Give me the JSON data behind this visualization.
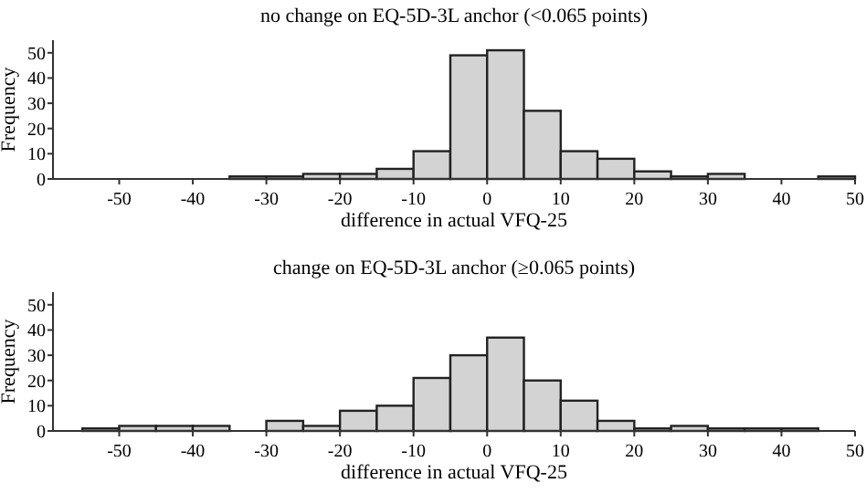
{
  "chart_data": [
    {
      "type": "histogram",
      "title": "no change on EQ-5D-3L anchor (<0.065 points)",
      "xlabel": "difference in actual VFQ-25",
      "ylabel": "Frequency",
      "color": "#d3d3d3",
      "bins": [
        -35,
        -30,
        -25,
        -20,
        -15,
        -10,
        -5,
        0,
        5,
        10,
        15,
        20,
        25,
        30,
        35,
        40,
        45,
        50
      ],
      "values": [
        1,
        1,
        2,
        2,
        4,
        11,
        49,
        51,
        27,
        11,
        8,
        3,
        1,
        2,
        0,
        0,
        1
      ],
      "xlim": [
        -59,
        50
      ],
      "xticks": [
        -50,
        -40,
        -30,
        -20,
        -10,
        0,
        10,
        20,
        30,
        40,
        50
      ],
      "ylim": [
        0,
        55
      ],
      "yticks": [
        0,
        10,
        20,
        30,
        40,
        50
      ],
      "grid": false
    },
    {
      "type": "histogram",
      "title": "change on EQ-5D-3L anchor (≥0.065 points)",
      "xlabel": "difference in actual VFQ-25",
      "ylabel": "Frequency",
      "color": "#d3d3d3",
      "bins": [
        -55,
        -50,
        -45,
        -40,
        -35,
        -30,
        -25,
        -20,
        -15,
        -10,
        -5,
        0,
        5,
        10,
        15,
        20,
        25,
        30,
        35,
        40,
        45
      ],
      "values": [
        1,
        2,
        2,
        2,
        0,
        4,
        2,
        8,
        10,
        21,
        30,
        37,
        20,
        12,
        4,
        1,
        2,
        1,
        1,
        1
      ],
      "xlim": [
        -59,
        50
      ],
      "xticks": [
        -50,
        -40,
        -30,
        -20,
        -10,
        0,
        10,
        20,
        30,
        40,
        50
      ],
      "ylim": [
        0,
        55
      ],
      "yticks": [
        0,
        10,
        20,
        30,
        40,
        50
      ],
      "grid": false
    }
  ]
}
